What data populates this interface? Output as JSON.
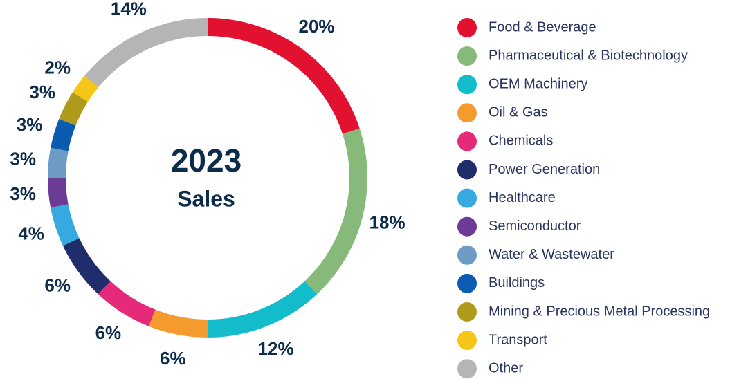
{
  "chart_data": {
    "type": "donut",
    "center_title": "2023",
    "center_subtitle": "Sales",
    "categories": [
      "Food & Beverage",
      "Pharmaceutical & Biotechnology",
      "OEM Machinery",
      "Oil & Gas",
      "Chemicals",
      "Power Generation",
      "Healthcare",
      "Semiconductor",
      "Water & Wastewater",
      "Buildings",
      "Mining & Precious Metal Processing",
      "Transport",
      "Other"
    ],
    "values": [
      20,
      18,
      12,
      6,
      6,
      6,
      4,
      3,
      3,
      3,
      3,
      2,
      14
    ],
    "value_labels": [
      "20%",
      "18%",
      "12%",
      "6%",
      "6%",
      "6%",
      "4%",
      "3%",
      "3%",
      "3%",
      "3%",
      "2%",
      "14%"
    ],
    "colors": [
      "#e2112f",
      "#86b97a",
      "#13bccb",
      "#f59a2c",
      "#e42a78",
      "#1f2d6b",
      "#36a9e1",
      "#6b3b96",
      "#6d9bc3",
      "#0a5cb0",
      "#b09a1c",
      "#f5c518",
      "#b5b5b5"
    ],
    "legend": "right"
  }
}
